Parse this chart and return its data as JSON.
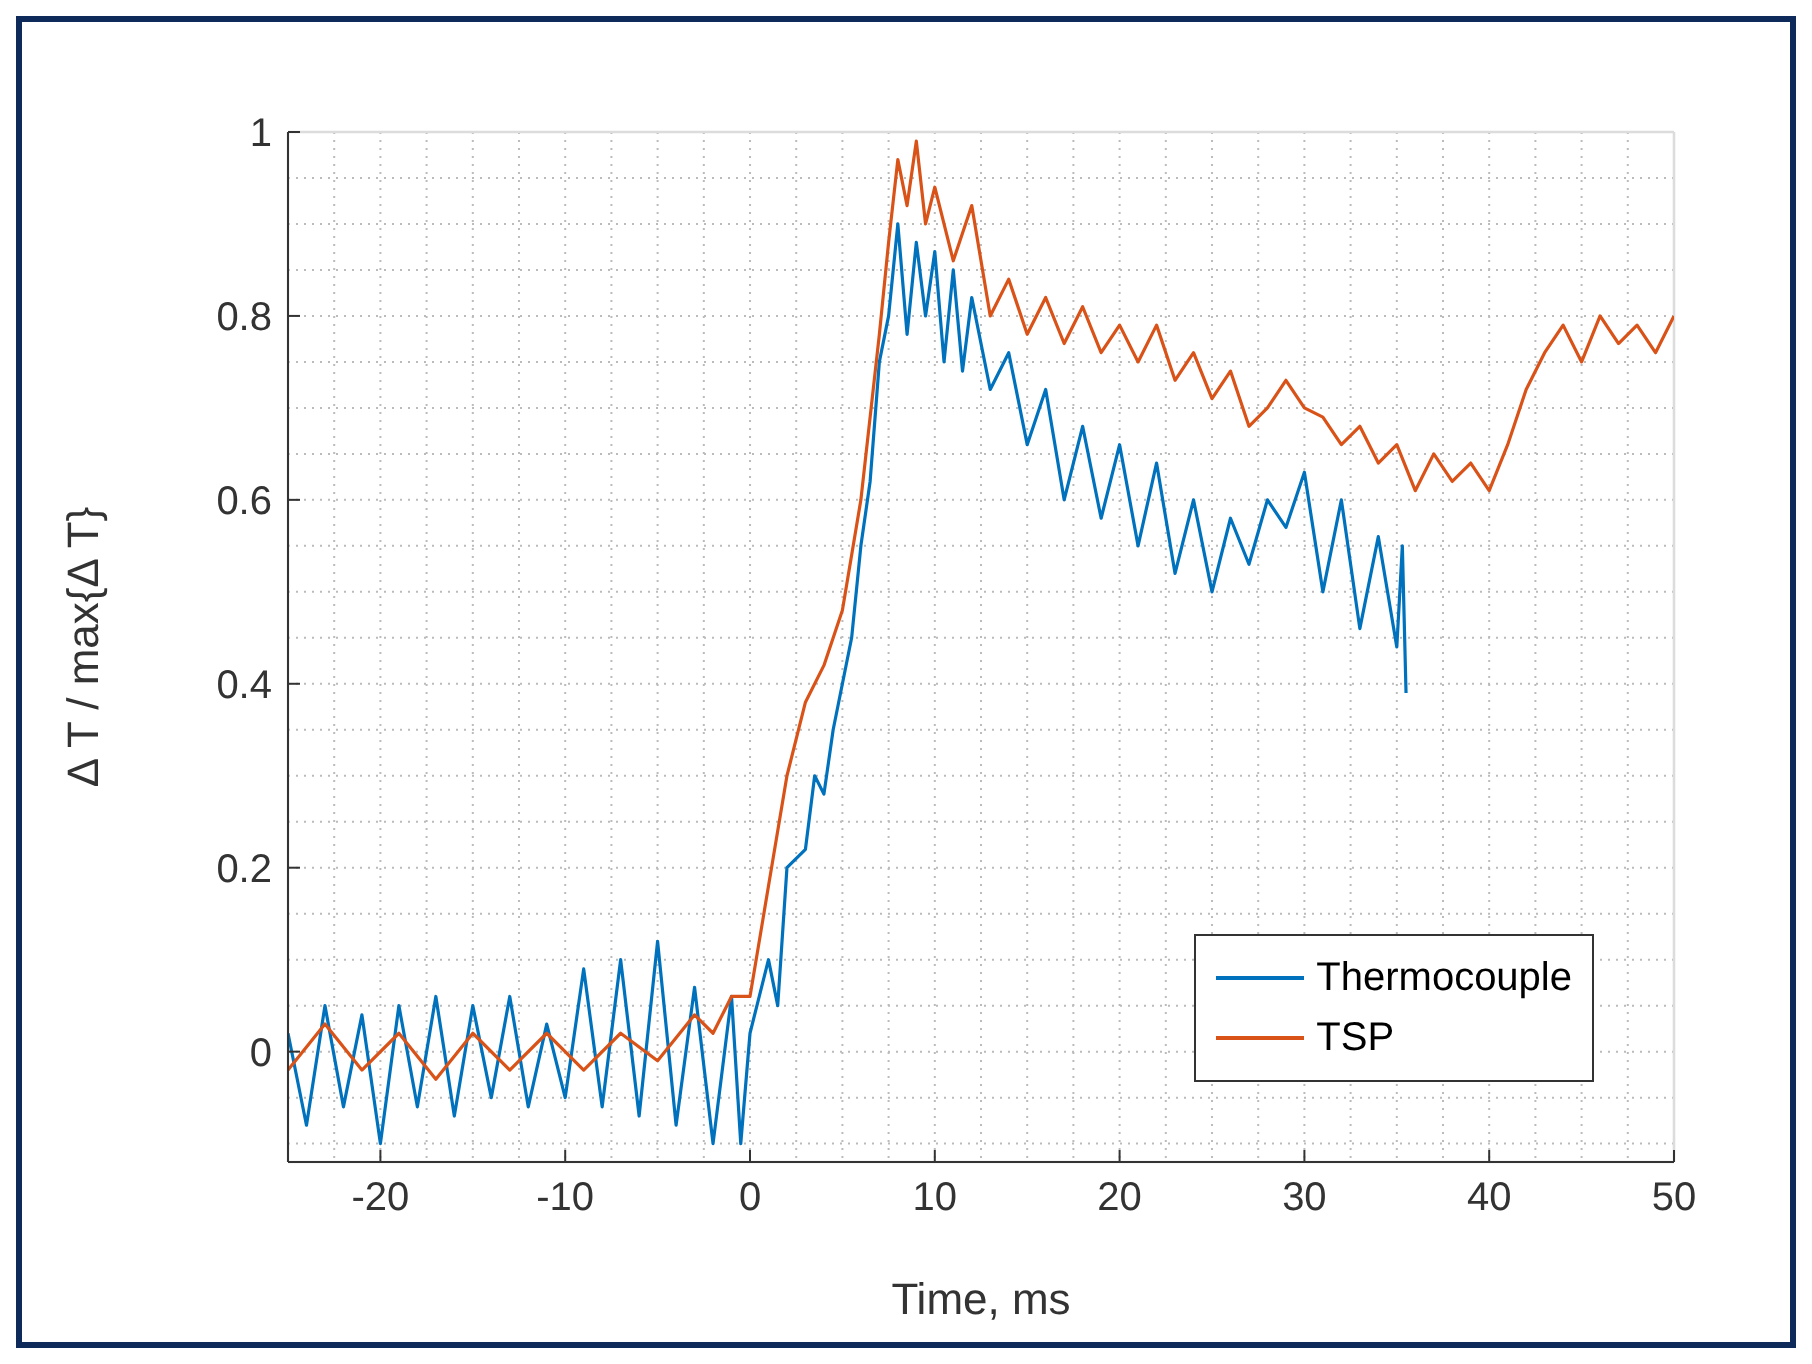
{
  "chart_data": {
    "type": "line",
    "xlabel": "Time, ms",
    "ylabel": "Δ T / max{Δ T}",
    "xlim": [
      -25,
      50
    ],
    "xticks": [
      -20,
      -10,
      0,
      10,
      20,
      30,
      40,
      50
    ],
    "ylim": [
      -0.12,
      1
    ],
    "yticks": [
      0,
      0.2,
      0.4,
      0.6,
      0.8,
      1
    ],
    "grid": true,
    "legend": "bottom right",
    "series": [
      {
        "name": "Thermocouple",
        "color": "#0072bd",
        "x": [
          -25,
          -24,
          -23,
          -22,
          -21,
          -20,
          -19,
          -18,
          -17,
          -16,
          -15,
          -14,
          -13,
          -12,
          -11,
          -10,
          -9,
          -8,
          -7,
          -6,
          -5,
          -4,
          -3,
          -2,
          -1,
          -0.5,
          0,
          1,
          1.5,
          2,
          3,
          3.5,
          4,
          4.5,
          5,
          5.5,
          6,
          6.5,
          7,
          7.5,
          8,
          8.5,
          9,
          9.5,
          10,
          10.5,
          11,
          11.5,
          12,
          13,
          14,
          15,
          16,
          17,
          18,
          19,
          20,
          21,
          22,
          23,
          24,
          25,
          26,
          27,
          28,
          29,
          30,
          31,
          32,
          33,
          34,
          35,
          35.3,
          35.5
        ],
        "values": [
          0.02,
          -0.08,
          0.05,
          -0.06,
          0.04,
          -0.1,
          0.05,
          -0.06,
          0.06,
          -0.07,
          0.05,
          -0.05,
          0.06,
          -0.06,
          0.03,
          -0.05,
          0.09,
          -0.06,
          0.1,
          -0.07,
          0.12,
          -0.08,
          0.07,
          -0.1,
          0.06,
          -0.1,
          0.02,
          0.1,
          0.05,
          0.2,
          0.22,
          0.3,
          0.28,
          0.35,
          0.4,
          0.45,
          0.55,
          0.62,
          0.75,
          0.8,
          0.9,
          0.78,
          0.88,
          0.8,
          0.87,
          0.75,
          0.85,
          0.74,
          0.82,
          0.72,
          0.76,
          0.66,
          0.72,
          0.6,
          0.68,
          0.58,
          0.66,
          0.55,
          0.64,
          0.52,
          0.6,
          0.5,
          0.58,
          0.53,
          0.6,
          0.57,
          0.63,
          0.5,
          0.6,
          0.46,
          0.56,
          0.44,
          0.55,
          0.39
        ]
      },
      {
        "name": "TSP",
        "color": "#d95319",
        "x": [
          -25,
          -23,
          -21,
          -19,
          -17,
          -15,
          -13,
          -11,
          -9,
          -7,
          -5,
          -3,
          -2,
          -1,
          0,
          1,
          2,
          3,
          4,
          5,
          6,
          7,
          7.5,
          8,
          8.5,
          9,
          9.5,
          10,
          11,
          12,
          13,
          14,
          15,
          16,
          17,
          18,
          19,
          20,
          21,
          22,
          23,
          24,
          25,
          26,
          27,
          28,
          29,
          30,
          31,
          32,
          33,
          34,
          35,
          36,
          37,
          38,
          39,
          40,
          41,
          42,
          43,
          44,
          45,
          46,
          47,
          48,
          49,
          50
        ],
        "values": [
          -0.02,
          0.03,
          -0.02,
          0.02,
          -0.03,
          0.02,
          -0.02,
          0.02,
          -0.02,
          0.02,
          -0.01,
          0.04,
          0.02,
          0.06,
          0.06,
          0.18,
          0.3,
          0.38,
          0.42,
          0.48,
          0.6,
          0.78,
          0.88,
          0.97,
          0.92,
          0.99,
          0.9,
          0.94,
          0.86,
          0.92,
          0.8,
          0.84,
          0.78,
          0.82,
          0.77,
          0.81,
          0.76,
          0.79,
          0.75,
          0.79,
          0.73,
          0.76,
          0.71,
          0.74,
          0.68,
          0.7,
          0.73,
          0.7,
          0.69,
          0.66,
          0.68,
          0.64,
          0.66,
          0.61,
          0.65,
          0.62,
          0.64,
          0.61,
          0.66,
          0.72,
          0.76,
          0.79,
          0.75,
          0.8,
          0.77,
          0.79,
          0.76,
          0.8
        ]
      }
    ]
  }
}
